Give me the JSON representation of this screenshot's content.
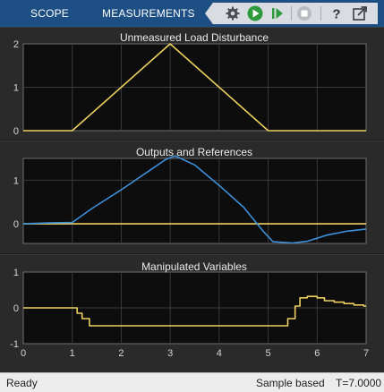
{
  "toolbar": {
    "tabs": [
      {
        "label": "SCOPE"
      },
      {
        "label": "MEASUREMENTS"
      }
    ],
    "buttons": [
      {
        "icon": "settings-gear-icon"
      },
      {
        "icon": "run-icon"
      },
      {
        "icon": "step-forward-icon"
      },
      {
        "icon": "stop-icon"
      },
      {
        "icon": "help-icon"
      },
      {
        "icon": "undock-icon"
      }
    ],
    "accent": "#1d4f84",
    "run_color": "#2e9a3d"
  },
  "chart_data": [
    {
      "type": "line",
      "title": "Unmeasured Load Disturbance",
      "xlim": [
        0,
        7
      ],
      "ylim": [
        0,
        2
      ],
      "yticks": [
        "0",
        "1",
        "2"
      ],
      "grid": true,
      "series": [
        {
          "color": "#edd05f",
          "x": [
            0,
            1,
            3,
            5,
            7
          ],
          "y": [
            0,
            0,
            2,
            0,
            0
          ]
        }
      ]
    },
    {
      "type": "line",
      "title": "Outputs and References",
      "xlim": [
        0,
        7
      ],
      "ylim": [
        -0.45,
        1.5
      ],
      "yticks": [
        "0",
        "1"
      ],
      "grid": true,
      "series": [
        {
          "color": "#edd05f",
          "x": [
            0,
            7
          ],
          "y": [
            0,
            0
          ]
        },
        {
          "color": "#3d8fd9",
          "x": [
            0,
            0.5,
            1,
            1.4,
            2,
            2.6,
            2.9,
            3.1,
            3.5,
            4,
            4.5,
            4.9,
            5.1,
            5.5,
            5.8,
            6.2,
            6.6,
            7
          ],
          "y": [
            0,
            0.02,
            0.03,
            0.35,
            0.78,
            1.24,
            1.47,
            1.56,
            1.35,
            0.88,
            0.38,
            -0.17,
            -0.41,
            -0.44,
            -0.4,
            -0.26,
            -0.17,
            -0.12
          ]
        }
      ]
    },
    {
      "type": "line",
      "title": "Manipulated Variables",
      "xlim": [
        0,
        7
      ],
      "ylim": [
        -1,
        1
      ],
      "yticks": [
        "-1",
        "0",
        "1"
      ],
      "xticks": [
        "0",
        "1",
        "2",
        "3",
        "4",
        "5",
        "6",
        "7"
      ],
      "grid": true,
      "series": [
        {
          "color": "#edd05f",
          "step": true,
          "x": [
            0,
            1.1,
            1.2,
            1.35,
            5.4,
            5.55,
            5.65,
            5.8,
            6.0,
            6.15,
            6.35,
            6.55,
            6.75,
            6.95,
            7
          ],
          "y": [
            0,
            -0.15,
            -0.3,
            -0.5,
            -0.3,
            0.05,
            0.28,
            0.32,
            0.28,
            0.2,
            0.16,
            0.12,
            0.08,
            0.05,
            0.05
          ]
        }
      ]
    }
  ],
  "status": {
    "ready": "Ready",
    "mode": "Sample based",
    "time": "T=7.0000"
  }
}
